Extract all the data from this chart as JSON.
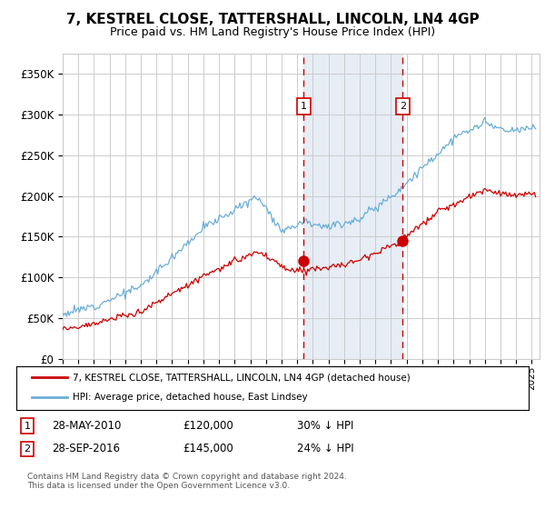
{
  "title": "7, KESTREL CLOSE, TATTERSHALL, LINCOLN, LN4 4GP",
  "subtitle": "Price paid vs. HM Land Registry's House Price Index (HPI)",
  "xlim_start": 1995.0,
  "xlim_end": 2025.5,
  "ylim": [
    0,
    375000
  ],
  "yticks": [
    0,
    50000,
    100000,
    150000,
    200000,
    250000,
    300000,
    350000
  ],
  "ytick_labels": [
    "£0",
    "£50K",
    "£100K",
    "£150K",
    "£200K",
    "£250K",
    "£300K",
    "£350K"
  ],
  "title_fontsize": 11,
  "subtitle_fontsize": 9,
  "hpi_color": "#6baed6",
  "property_color": "#cc0000",
  "sale1_x": 2010.41,
  "sale1_y": 120000,
  "sale2_x": 2016.74,
  "sale2_y": 145000,
  "legend_label_property": "7, KESTREL CLOSE, TATTERSHALL, LINCOLN, LN4 4GP (detached house)",
  "legend_label_hpi": "HPI: Average price, detached house, East Lindsey",
  "annotation1_date": "28-MAY-2010",
  "annotation1_price": "£120,000",
  "annotation1_pct": "30% ↓ HPI",
  "annotation2_date": "28-SEP-2016",
  "annotation2_price": "£145,000",
  "annotation2_pct": "24% ↓ HPI",
  "footnote": "Contains HM Land Registry data © Crown copyright and database right 2024.\nThis data is licensed under the Open Government Licence v3.0.",
  "background_color": "#ffffff",
  "grid_color": "#cccccc",
  "shade_color": "#dce6f1"
}
